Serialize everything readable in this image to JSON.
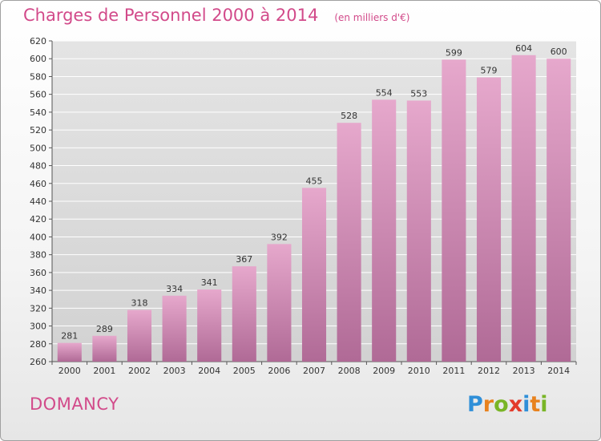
{
  "header": {
    "title": "Charges de Personnel 2000 à 2014",
    "subtitle": "(en milliers d'€)"
  },
  "footer": {
    "commune": "DOMANCY"
  },
  "logo": {
    "text": "Proxiti",
    "letters": [
      {
        "ch": "P",
        "color": "#2f8fd8"
      },
      {
        "ch": "r",
        "color": "#e8821e"
      },
      {
        "ch": "o",
        "color": "#79b526"
      },
      {
        "ch": "x",
        "color": "#e33b2b"
      },
      {
        "ch": "i",
        "color": "#2f8fd8"
      },
      {
        "ch": "t",
        "color": "#e8821e"
      },
      {
        "ch": "i",
        "color": "#79b526"
      }
    ]
  },
  "colors": {
    "bar_top": "#e6a8cc",
    "bar_bottom": "#b06a96",
    "grid": "#ffffff",
    "axis": "#555555"
  },
  "chart_data": {
    "type": "bar",
    "title": "Charges de Personnel 2000 à 2014",
    "xlabel": "",
    "ylabel": "",
    "categories": [
      "2000",
      "2001",
      "2002",
      "2003",
      "2004",
      "2005",
      "2006",
      "2007",
      "2008",
      "2009",
      "2010",
      "2011",
      "2012",
      "2013",
      "2014"
    ],
    "values": [
      281,
      289,
      318,
      334,
      341,
      367,
      392,
      455,
      528,
      554,
      553,
      599,
      579,
      604,
      600
    ],
    "ylim": [
      260,
      620
    ],
    "yticks": [
      260,
      280,
      300,
      320,
      340,
      360,
      380,
      400,
      420,
      440,
      460,
      480,
      500,
      520,
      540,
      560,
      580,
      600,
      620
    ],
    "grid": true
  }
}
